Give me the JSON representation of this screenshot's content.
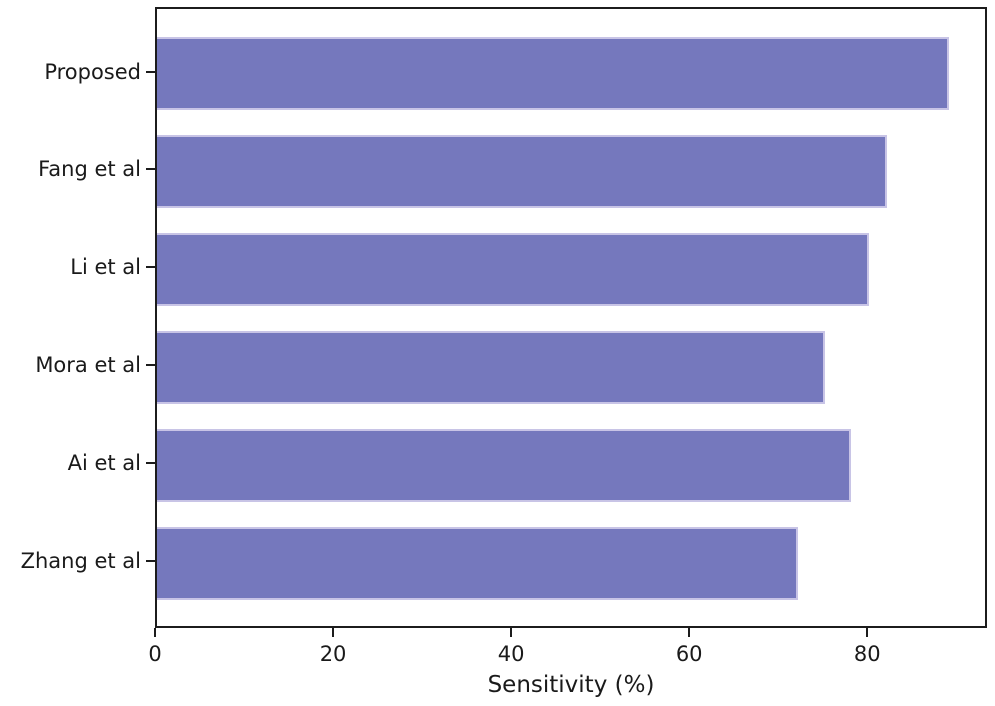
{
  "chart_data": {
    "type": "bar",
    "orientation": "horizontal",
    "title": "",
    "xlabel": "Sensitivity (%)",
    "ylabel": "",
    "categories": [
      "Proposed",
      "Fang et al",
      "Li et al",
      "Mora et al",
      "Ai et al",
      "Zhang et al"
    ],
    "values": [
      89,
      82,
      80,
      75,
      78,
      72
    ],
    "x_ticks": [
      0,
      20,
      40,
      60,
      80
    ],
    "xlim": [
      0,
      93.45
    ],
    "grid": false,
    "legend": "none",
    "bar_color": "#7578bd",
    "bar_edge_color": "#c8c4e6",
    "axis_color": "#1c1c1c",
    "text_color": "#1a1a1a"
  }
}
